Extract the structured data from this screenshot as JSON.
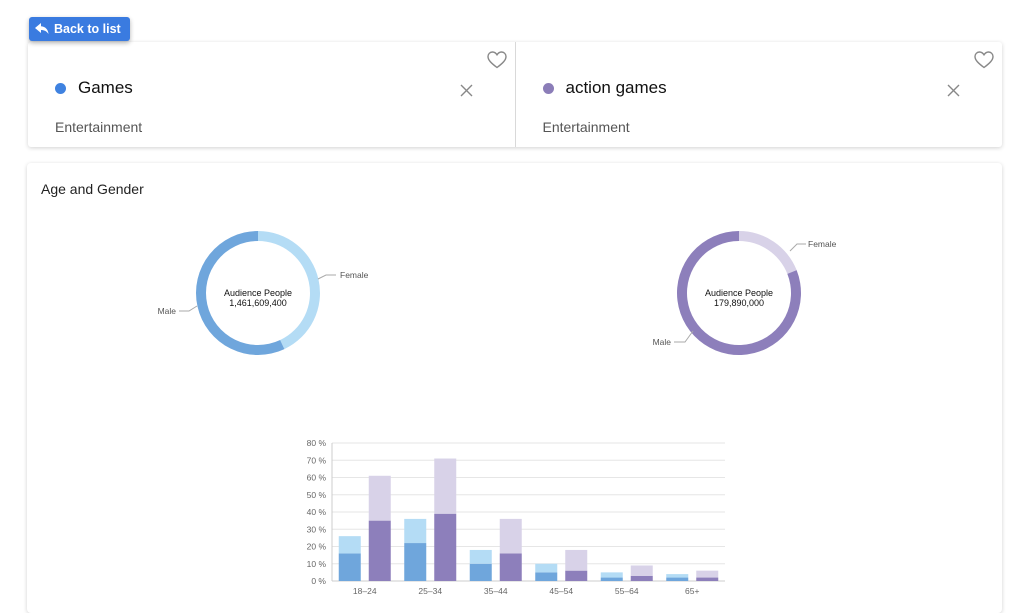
{
  "back_button": {
    "label": "Back to list",
    "icon": "reply-arrow-icon"
  },
  "topics": [
    {
      "name": "Games",
      "category": "Entertainment",
      "color": "#3f82e0"
    },
    {
      "name": "action games",
      "category": "Entertainment",
      "color": "#8b7db8"
    }
  ],
  "section": {
    "title": "Age and Gender"
  },
  "colors": {
    "games_male": "#6fa6dc",
    "games_female": "#b4dcf5",
    "action_male": "#8d7fbb",
    "action_female": "#d8d2e8"
  },
  "chart_data": [
    {
      "type": "pie",
      "center_label": "Audience People",
      "center_value": "1,461,609,400",
      "slices": [
        {
          "label": "Male",
          "value": 57
        },
        {
          "label": "Female",
          "value": 43
        }
      ]
    },
    {
      "type": "pie",
      "center_label": "Audience People",
      "center_value": "179,890,000",
      "slices": [
        {
          "label": "Male",
          "value": 81
        },
        {
          "label": "Female",
          "value": 19
        }
      ]
    },
    {
      "type": "bar",
      "stacked": true,
      "categories": [
        "18–24",
        "25–34",
        "35–44",
        "45–54",
        "55–64",
        "65+"
      ],
      "series": [
        {
          "group": "Games",
          "gender": "Male",
          "values": [
            16,
            22,
            10,
            5,
            2,
            2
          ]
        },
        {
          "group": "Games",
          "gender": "Female",
          "values": [
            10,
            14,
            8,
            5,
            3,
            2
          ]
        },
        {
          "group": "action games",
          "gender": "Male",
          "values": [
            35,
            39,
            16,
            6,
            3,
            2
          ]
        },
        {
          "group": "action games",
          "gender": "Female",
          "values": [
            26,
            32,
            20,
            12,
            6,
            4
          ]
        }
      ],
      "ylim": [
        0,
        80
      ],
      "yticks": [
        "0 %",
        "10 %",
        "20 %",
        "30 %",
        "40 %",
        "50 %",
        "60 %",
        "70 %",
        "80 %"
      ],
      "grid": true
    }
  ]
}
